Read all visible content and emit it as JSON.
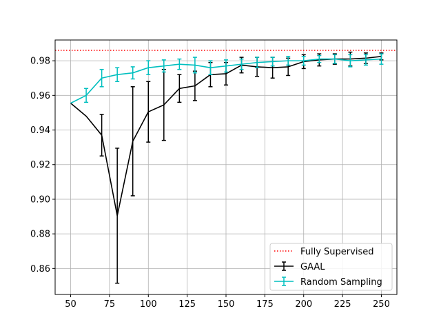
{
  "chart_data": {
    "type": "line",
    "title": "",
    "xlabel": "",
    "ylabel": "",
    "xlim": [
      40,
      260
    ],
    "ylim": [
      0.845,
      0.992
    ],
    "grid": true,
    "legend_position": "lower-right",
    "xticks": [
      50,
      75,
      100,
      125,
      150,
      175,
      200,
      225,
      250
    ],
    "xtick_labels": [
      "50",
      "75",
      "100",
      "125",
      "150",
      "175",
      "200",
      "225",
      "250"
    ],
    "yticks": [
      0.86,
      0.88,
      0.9,
      0.92,
      0.94,
      0.96,
      0.98
    ],
    "ytick_labels": [
      "0.86",
      "0.88",
      "0.90",
      "0.92",
      "0.94",
      "0.96",
      "0.98"
    ],
    "x": [
      50,
      60,
      70,
      80,
      90,
      100,
      110,
      120,
      130,
      140,
      150,
      160,
      170,
      180,
      190,
      200,
      210,
      220,
      230,
      240,
      250
    ],
    "reference_line": {
      "name": "Fully Supervised",
      "y": 0.986,
      "color": "#ff0000",
      "style": "dotted"
    },
    "series": [
      {
        "name": "GAAL",
        "color": "#000000",
        "values": [
          0.9555,
          0.948,
          0.937,
          0.8905,
          0.9335,
          0.9505,
          0.9545,
          0.964,
          0.9655,
          0.972,
          0.9725,
          0.9775,
          0.9765,
          0.976,
          0.9765,
          0.9795,
          0.9805,
          0.981,
          0.981,
          0.9815,
          0.9825
        ],
        "errors": [
          0.0,
          0.0,
          0.012,
          0.039,
          0.0315,
          0.0175,
          0.0205,
          0.008,
          0.0085,
          0.007,
          0.0065,
          0.0045,
          0.0055,
          0.006,
          0.005,
          0.004,
          0.0035,
          0.003,
          0.004,
          0.003,
          0.002
        ]
      },
      {
        "name": "Random Sampling",
        "color": "#00bfbf",
        "values": [
          0.9555,
          0.96,
          0.97,
          0.972,
          0.973,
          0.976,
          0.977,
          0.978,
          0.9775,
          0.976,
          0.977,
          0.978,
          0.979,
          0.9795,
          0.98,
          0.98,
          0.981,
          0.981,
          0.98,
          0.9805,
          0.981
        ],
        "errors": [
          0.0,
          0.004,
          0.005,
          0.004,
          0.0035,
          0.004,
          0.0035,
          0.003,
          0.0045,
          0.004,
          0.0035,
          0.003,
          0.003,
          0.0025,
          0.0025,
          0.0025,
          0.002,
          0.0025,
          0.0035,
          0.003,
          0.003
        ]
      }
    ]
  }
}
